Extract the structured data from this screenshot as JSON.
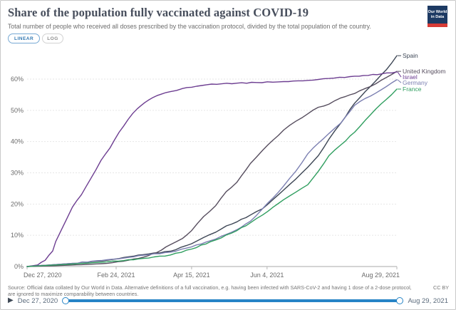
{
  "header": {
    "title": "Share of the population fully vaccinated against COVID-19",
    "subtitle": "Total number of people who received all doses prescribed by the vaccination protocol, divided by the total population of the country.",
    "logo": {
      "line1": "Our World",
      "line2": "in Data",
      "bg_color": "#1d3a63",
      "stripe_color": "#d63b36"
    }
  },
  "scale_toggle": {
    "linear_label": "LINEAR",
    "log_label": "LOG",
    "selected": "LINEAR"
  },
  "chart_data": {
    "type": "line",
    "title": "Share of the population fully vaccinated against COVID-19",
    "xlabel": "",
    "ylabel": "",
    "grid": true,
    "legend_position": "right-edge-labels",
    "x_axis_days_range": [
      0,
      245
    ],
    "ylim": [
      0,
      70
    ],
    "x_ticks": [
      {
        "day": 0,
        "label": "Dec 27, 2020"
      },
      {
        "day": 59,
        "label": "Feb 24, 2021"
      },
      {
        "day": 109,
        "label": "Apr 15, 2021"
      },
      {
        "day": 159,
        "label": "Jun 4, 2021"
      },
      {
        "day": 245,
        "label": "Aug 29, 2021"
      }
    ],
    "y_ticks": [
      {
        "pct": 0,
        "label": "0%"
      },
      {
        "pct": 10,
        "label": "10%"
      },
      {
        "pct": 20,
        "label": "20%"
      },
      {
        "pct": 30,
        "label": "30%"
      },
      {
        "pct": 40,
        "label": "40%"
      },
      {
        "pct": 50,
        "label": "50%"
      },
      {
        "pct": 60,
        "label": "60%"
      }
    ],
    "series": [
      {
        "name": "Spain",
        "color": "#3d4655",
        "points": [
          [
            0,
            0
          ],
          [
            30,
            1
          ],
          [
            53,
            2
          ],
          [
            64,
            2.9
          ],
          [
            77,
            3.8
          ],
          [
            95,
            4.9
          ],
          [
            109,
            7.3
          ],
          [
            117,
            9.3
          ],
          [
            125,
            11
          ],
          [
            132,
            13
          ],
          [
            139,
            14.3
          ],
          [
            148,
            16.5
          ],
          [
            156,
            18.5
          ],
          [
            163,
            21.5
          ],
          [
            170,
            24.5
          ],
          [
            178,
            28
          ],
          [
            186,
            31.8
          ],
          [
            193,
            35.5
          ],
          [
            200,
            40.8
          ],
          [
            208,
            46
          ],
          [
            217,
            52.3
          ],
          [
            224,
            56
          ],
          [
            231,
            59.4
          ],
          [
            238,
            63
          ],
          [
            245,
            67.5
          ]
        ]
      },
      {
        "name": "United Kingdom",
        "color": "#564d5e",
        "points": [
          [
            0,
            0
          ],
          [
            20,
            0.3
          ],
          [
            36,
            0.6
          ],
          [
            53,
            1
          ],
          [
            64,
            1.7
          ],
          [
            77,
            3
          ],
          [
            86,
            4.5
          ],
          [
            95,
            7
          ],
          [
            103,
            9
          ],
          [
            109,
            11.5
          ],
          [
            117,
            16
          ],
          [
            125,
            19.5
          ],
          [
            132,
            24
          ],
          [
            139,
            27
          ],
          [
            148,
            33
          ],
          [
            156,
            37.2
          ],
          [
            163,
            40.5
          ],
          [
            170,
            43.7
          ],
          [
            178,
            46.5
          ],
          [
            186,
            48.9
          ],
          [
            193,
            51
          ],
          [
            200,
            52
          ],
          [
            208,
            54
          ],
          [
            217,
            55.4
          ],
          [
            224,
            57
          ],
          [
            231,
            58.5
          ],
          [
            238,
            60.5
          ],
          [
            245,
            62.5
          ]
        ]
      },
      {
        "name": "Israel",
        "color": "#6d3e91",
        "points": [
          [
            0,
            0
          ],
          [
            7,
            0.5
          ],
          [
            12,
            2
          ],
          [
            17,
            5
          ],
          [
            19,
            8
          ],
          [
            23,
            12
          ],
          [
            26,
            15
          ],
          [
            30,
            19
          ],
          [
            36,
            23
          ],
          [
            42,
            28
          ],
          [
            49,
            34
          ],
          [
            55,
            38
          ],
          [
            61,
            43
          ],
          [
            64,
            45
          ],
          [
            70,
            49
          ],
          [
            73,
            50.5
          ],
          [
            78,
            52.5
          ],
          [
            83,
            54
          ],
          [
            89,
            55.2
          ],
          [
            95,
            56
          ],
          [
            103,
            57
          ],
          [
            109,
            57.4
          ],
          [
            119,
            58.2
          ],
          [
            129,
            58.5
          ],
          [
            139,
            58.7
          ],
          [
            152,
            58.9
          ],
          [
            170,
            59.2
          ],
          [
            186,
            59.6
          ],
          [
            200,
            60.2
          ],
          [
            214,
            60.8
          ],
          [
            226,
            61.2
          ],
          [
            235,
            61.7
          ],
          [
            245,
            62.3
          ]
        ]
      },
      {
        "name": "Germany",
        "color": "#7b7fb1",
        "points": [
          [
            0,
            0
          ],
          [
            30,
            1
          ],
          [
            53,
            2.2
          ],
          [
            64,
            2.7
          ],
          [
            77,
            3.6
          ],
          [
            95,
            4.6
          ],
          [
            109,
            6.3
          ],
          [
            125,
            8.8
          ],
          [
            139,
            11.8
          ],
          [
            148,
            14.5
          ],
          [
            156,
            18.5
          ],
          [
            163,
            22
          ],
          [
            170,
            25.8
          ],
          [
            178,
            30.5
          ],
          [
            186,
            36.1
          ],
          [
            193,
            39.5
          ],
          [
            200,
            42.6
          ],
          [
            208,
            46
          ],
          [
            217,
            51.6
          ],
          [
            224,
            53.8
          ],
          [
            231,
            55.5
          ],
          [
            238,
            57.6
          ],
          [
            245,
            59.8
          ]
        ]
      },
      {
        "name": "France",
        "color": "#2f9e5f",
        "points": [
          [
            0,
            0
          ],
          [
            30,
            0.8
          ],
          [
            53,
            1.5
          ],
          [
            64,
            1.9
          ],
          [
            77,
            2.6
          ],
          [
            95,
            3.7
          ],
          [
            109,
            5.6
          ],
          [
            125,
            8.5
          ],
          [
            139,
            11.5
          ],
          [
            148,
            14
          ],
          [
            156,
            16.5
          ],
          [
            163,
            19
          ],
          [
            170,
            21.4
          ],
          [
            178,
            23.8
          ],
          [
            186,
            26.2
          ],
          [
            193,
            30.5
          ],
          [
            200,
            35.5
          ],
          [
            208,
            39
          ],
          [
            217,
            43
          ],
          [
            224,
            46.8
          ],
          [
            231,
            50.4
          ],
          [
            238,
            53.5
          ],
          [
            245,
            56.8
          ]
        ]
      }
    ]
  },
  "footer": {
    "source": "Source: Official data collated by Our World in Data. Alternative definitions of a full vaccination, e.g. having been infected with SARS-CoV-2 and having 1 dose of a 2-dose protocol, are ignored to maximize comparability between countries.",
    "license": "CC BY"
  },
  "timeline": {
    "start_date": "Dec 27, 2020",
    "end_date": "Aug 29, 2021",
    "play_icon": "▶"
  }
}
